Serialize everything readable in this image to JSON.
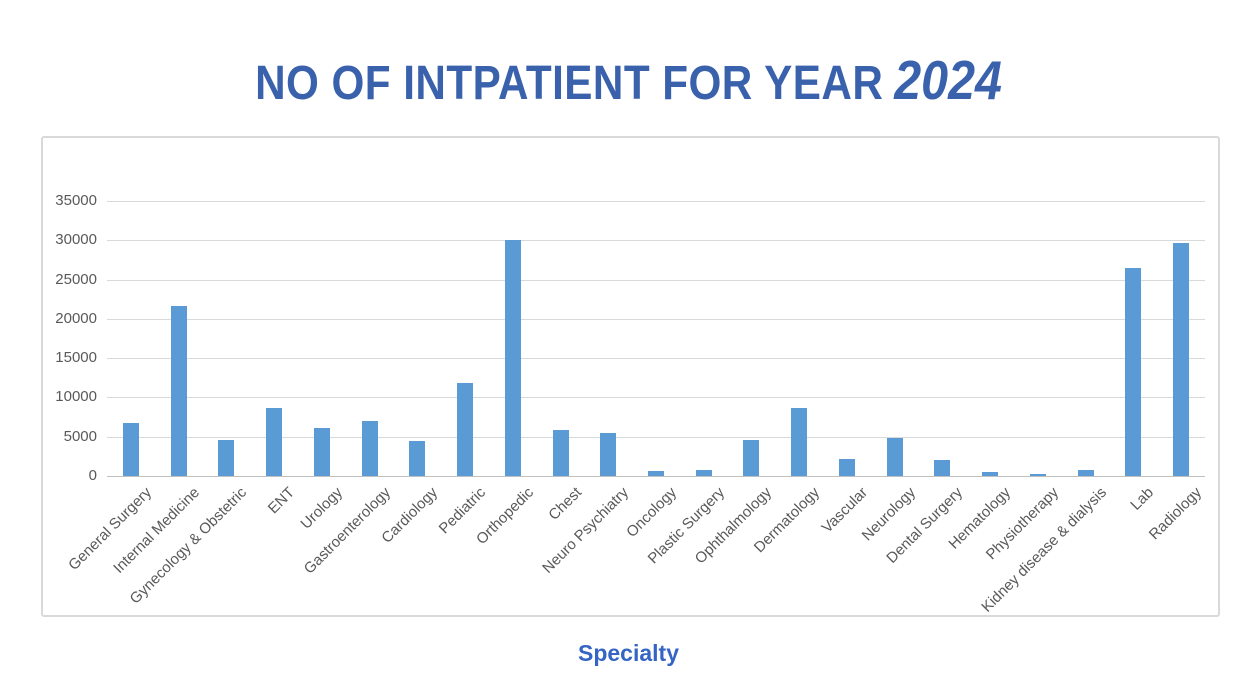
{
  "title": {
    "main": "NO OF INTPATIENT FOR YEAR",
    "year": "2024"
  },
  "colors": {
    "bar": "#5B9BD5",
    "title_text": "#3A62AC",
    "axis_title_text": "#3565C4",
    "gridline": "#D9D9D9",
    "axis_line": "#C0C0C0",
    "tick_text": "#595959",
    "frame_border": "#D9D9D9"
  },
  "chart_data": {
    "type": "bar",
    "title": "NO OF INTPATIENT FOR YEAR 2024",
    "xlabel": "Specialty",
    "ylabel": "",
    "ylim": [
      0,
      35000
    ],
    "yticks": [
      0,
      5000,
      10000,
      15000,
      20000,
      25000,
      30000,
      35000
    ],
    "grid": true,
    "legend": false,
    "categories": [
      "General Surgery",
      "Internal Medicine",
      "Gynecology & Obstetric",
      "ENT",
      "Urology",
      "Gastroenterology",
      "Cardiology",
      "Pediatric",
      "Orthopedic",
      "Chest",
      "Neuro Psychiatry",
      "Oncology",
      "Plastic Surgery",
      "Ophthalmology",
      "Dermatology",
      "Vascular",
      "Neurology",
      "Dental Surgery",
      "Hematology",
      "Physiotherapy",
      "Kidney disease & dialysis",
      "Lab",
      "Radiology"
    ],
    "values": [
      6800,
      21700,
      4600,
      8600,
      6100,
      7000,
      4400,
      11800,
      30000,
      5800,
      5500,
      600,
      800,
      4600,
      8700,
      2200,
      4900,
      2000,
      500,
      300,
      800,
      26500,
      29700
    ]
  }
}
